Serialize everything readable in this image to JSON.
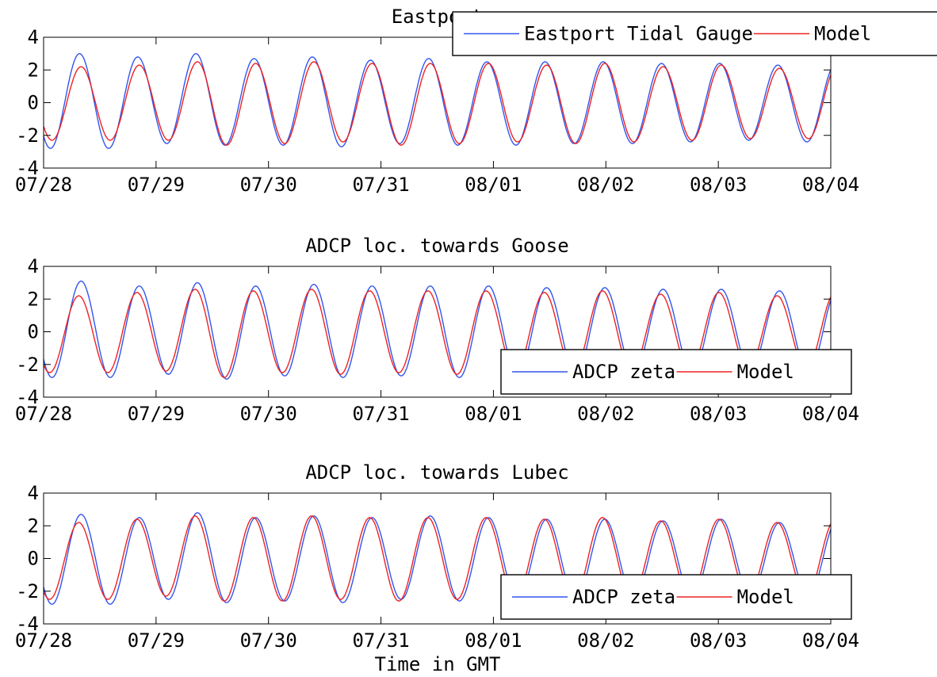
{
  "figure": {
    "xlabel": "Time in GMT",
    "series_colors": {
      "observed": "#3355ee",
      "model": "#ee2222"
    }
  },
  "chart_data": [
    {
      "type": "line",
      "title": "Eastport",
      "xlabel": "",
      "ylabel": "",
      "xlim": [
        "07/28",
        "08/04"
      ],
      "ylim": [
        -4,
        4
      ],
      "x_ticks": [
        "07/28",
        "07/29",
        "07/30",
        "07/31",
        "08/01",
        "08/02",
        "08/03",
        "08/04"
      ],
      "y_ticks": [
        4,
        2,
        0,
        -2,
        -4
      ],
      "grid": false,
      "legend": {
        "placement": "top-right",
        "entries": [
          "Eastport Tidal Gauge",
          "Model"
        ]
      },
      "tide": {
        "period_hours": 12.42,
        "samples": 128
      },
      "series": [
        {
          "name": "Eastport Tidal Gauge",
          "color": "#3355ee",
          "first_high_time": "07/28 07:40",
          "high_amplitudes": [
            3.0,
            2.8,
            3.0,
            2.7,
            2.8,
            2.6,
            2.7,
            2.5,
            2.5,
            2.5,
            2.4,
            2.4,
            2.3,
            2.4
          ],
          "low_amplitudes": [
            2.8,
            2.5,
            2.6,
            2.6,
            2.7,
            2.5,
            2.6,
            2.6,
            2.5,
            2.5,
            2.4,
            2.3,
            2.4,
            2.4
          ]
        },
        {
          "name": "Model",
          "color": "#ee2222",
          "first_high_time": "07/28 08:00",
          "high_amplitudes": [
            2.2,
            2.3,
            2.5,
            2.4,
            2.5,
            2.4,
            2.4,
            2.4,
            2.3,
            2.4,
            2.2,
            2.3,
            2.1,
            2.3
          ],
          "low_amplitudes": [
            2.3,
            2.3,
            2.6,
            2.5,
            2.4,
            2.6,
            2.5,
            2.4,
            2.5,
            2.4,
            2.3,
            2.2,
            2.2,
            2.1
          ]
        }
      ]
    },
    {
      "type": "line",
      "title": "ADCP loc. towards Goose",
      "xlabel": "",
      "ylabel": "",
      "xlim": [
        "07/28",
        "08/04"
      ],
      "ylim": [
        -4,
        4
      ],
      "x_ticks": [
        "07/28",
        "07/29",
        "07/30",
        "07/31",
        "08/01",
        "08/02",
        "08/03",
        "08/04"
      ],
      "y_ticks": [
        4,
        2,
        0,
        -2,
        -4
      ],
      "grid": false,
      "legend": {
        "placement": "bottom-right",
        "entries": [
          "ADCP zeta",
          "Model"
        ]
      },
      "tide": {
        "period_hours": 12.42,
        "samples": 128
      },
      "series": [
        {
          "name": "ADCP zeta",
          "color": "#3355ee",
          "first_high_time": "07/28 08:00",
          "high_amplitudes": [
            3.1,
            2.8,
            3.0,
            2.8,
            2.9,
            2.8,
            2.8,
            2.8,
            2.7,
            2.7,
            2.6,
            2.6,
            2.5,
            2.6
          ],
          "low_amplitudes": [
            2.8,
            2.6,
            2.9,
            2.7,
            2.8,
            2.7,
            2.8,
            2.7,
            2.6,
            2.5,
            2.5,
            2.4,
            2.5,
            2.4
          ]
        },
        {
          "name": "Model",
          "color": "#ee2222",
          "first_high_time": "07/28 07:30",
          "high_amplitudes": [
            2.2,
            2.4,
            2.6,
            2.5,
            2.6,
            2.5,
            2.5,
            2.5,
            2.4,
            2.5,
            2.3,
            2.4,
            2.2,
            2.4
          ],
          "low_amplitudes": [
            2.5,
            2.4,
            2.8,
            2.5,
            2.6,
            2.5,
            2.6,
            2.5,
            2.5,
            2.4,
            2.4,
            2.3,
            2.3,
            2.3
          ]
        }
      ]
    },
    {
      "type": "line",
      "title": "ADCP loc. towards Lubec",
      "xlabel": "Time in GMT",
      "ylabel": "",
      "xlim": [
        "07/28",
        "08/04"
      ],
      "ylim": [
        -4,
        4
      ],
      "x_ticks": [
        "07/28",
        "07/29",
        "07/30",
        "07/31",
        "08/01",
        "08/02",
        "08/03",
        "08/04"
      ],
      "y_ticks": [
        4,
        2,
        0,
        -2,
        -4
      ],
      "grid": false,
      "legend": {
        "placement": "bottom-right",
        "entries": [
          "ADCP zeta",
          "Model"
        ]
      },
      "tide": {
        "period_hours": 12.42,
        "samples": 128
      },
      "series": [
        {
          "name": "ADCP zeta",
          "color": "#3355ee",
          "first_high_time": "07/28 08:00",
          "high_amplitudes": [
            2.7,
            2.5,
            2.8,
            2.5,
            2.6,
            2.5,
            2.6,
            2.5,
            2.4,
            2.4,
            2.3,
            2.4,
            2.2,
            2.4
          ],
          "low_amplitudes": [
            2.8,
            2.5,
            2.7,
            2.6,
            2.7,
            2.5,
            2.6,
            2.5,
            2.5,
            2.4,
            2.4,
            2.3,
            2.3,
            2.3
          ]
        },
        {
          "name": "Model",
          "color": "#ee2222",
          "first_high_time": "07/28 07:30",
          "high_amplitudes": [
            2.2,
            2.4,
            2.6,
            2.5,
            2.6,
            2.5,
            2.5,
            2.5,
            2.4,
            2.5,
            2.3,
            2.4,
            2.2,
            2.4
          ],
          "low_amplitudes": [
            2.5,
            2.3,
            2.6,
            2.6,
            2.5,
            2.6,
            2.5,
            2.5,
            2.5,
            2.4,
            2.4,
            2.3,
            2.3,
            2.3
          ]
        }
      ]
    }
  ]
}
